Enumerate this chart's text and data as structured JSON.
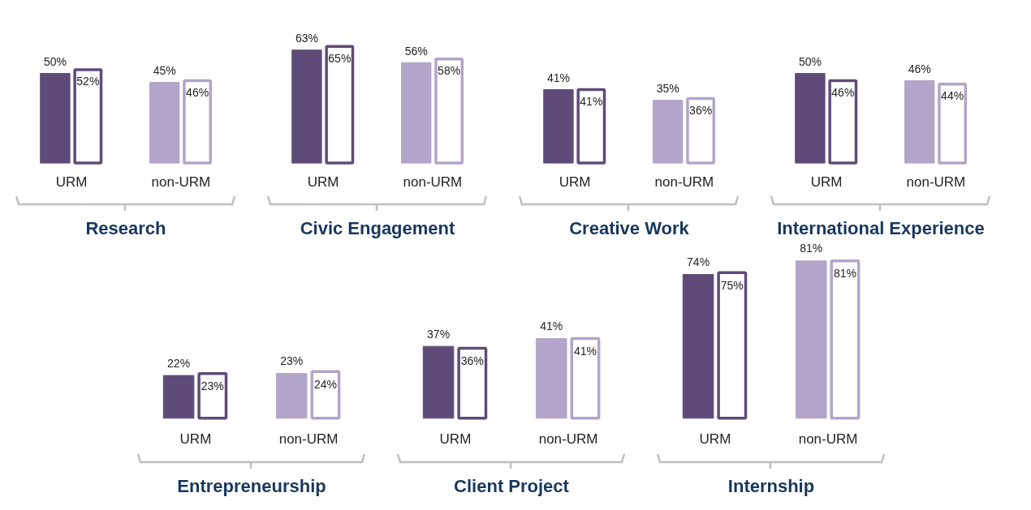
{
  "chart_data": [
    {
      "type": "bar",
      "title": "Research",
      "categories": [
        "URM",
        "non-URM"
      ],
      "series": [
        {
          "colors": [
            "#5f4b7a",
            "#b3a4c9"
          ],
          "values": [
            50,
            45
          ],
          "value_labels": [
            "50%",
            "45%"
          ]
        },
        {
          "colors": [
            "#5f4b7a",
            "#b3a4c9"
          ],
          "values": [
            52,
            46
          ],
          "value_labels": [
            "52%",
            "46%"
          ]
        }
      ]
    },
    {
      "type": "bar",
      "title": "Civic Engagement",
      "categories": [
        "URM",
        "non-URM"
      ],
      "series": [
        {
          "colors": [
            "#5f4b7a",
            "#b3a4c9"
          ],
          "values": [
            63,
            56
          ],
          "value_labels": [
            "63%",
            "56%"
          ]
        },
        {
          "colors": [
            "#5f4b7a",
            "#b3a4c9"
          ],
          "values": [
            65,
            58
          ],
          "value_labels": [
            "65%",
            "58%"
          ]
        }
      ]
    },
    {
      "type": "bar",
      "title": "Creative Work",
      "categories": [
        "URM",
        "non-URM"
      ],
      "series": [
        {
          "colors": [
            "#5f4b7a",
            "#b3a4c9"
          ],
          "values": [
            41,
            35
          ],
          "value_labels": [
            "41%",
            "35%"
          ]
        },
        {
          "colors": [
            "#5f4b7a",
            "#b3a4c9"
          ],
          "values": [
            41,
            36
          ],
          "value_labels": [
            "41%",
            "36%"
          ]
        }
      ]
    },
    {
      "type": "bar",
      "title": "International Experience",
      "categories": [
        "URM",
        "non-URM"
      ],
      "series": [
        {
          "colors": [
            "#5f4b7a",
            "#b3a4c9"
          ],
          "values": [
            50,
            46
          ],
          "value_labels": [
            "50%",
            "46%"
          ]
        },
        {
          "colors": [
            "#5f4b7a",
            "#b3a4c9"
          ],
          "values": [
            46,
            44
          ],
          "value_labels": [
            "46%",
            "44%"
          ]
        }
      ]
    },
    {
      "type": "bar",
      "title": "Entrepreneurship",
      "categories": [
        "URM",
        "non-URM"
      ],
      "series": [
        {
          "colors": [
            "#5f4b7a",
            "#b3a4c9"
          ],
          "values": [
            22,
            23
          ],
          "value_labels": [
            "22%",
            "23%"
          ]
        },
        {
          "colors": [
            "#5f4b7a",
            "#b3a4c9"
          ],
          "values": [
            23,
            24
          ],
          "value_labels": [
            "23%",
            "24%"
          ]
        }
      ]
    },
    {
      "type": "bar",
      "title": "Client Project",
      "categories": [
        "URM",
        "non-URM"
      ],
      "series": [
        {
          "colors": [
            "#5f4b7a",
            "#b3a4c9"
          ],
          "values": [
            37,
            41
          ],
          "value_labels": [
            "37%",
            "41%"
          ]
        },
        {
          "colors": [
            "#5f4b7a",
            "#b3a4c9"
          ],
          "values": [
            36,
            41
          ],
          "value_labels": [
            "36%",
            "41%"
          ]
        }
      ]
    },
    {
      "type": "bar",
      "title": "Internship",
      "categories": [
        "URM",
        "non-URM"
      ],
      "series": [
        {
          "colors": [
            "#5f4b7a",
            "#b3a4c9"
          ],
          "values": [
            74,
            81
          ],
          "value_labels": [
            "74%",
            "81%"
          ]
        },
        {
          "colors": [
            "#5f4b7a",
            "#b3a4c9"
          ],
          "values": [
            75,
            81
          ],
          "value_labels": [
            "75%",
            "81%"
          ]
        }
      ]
    }
  ]
}
